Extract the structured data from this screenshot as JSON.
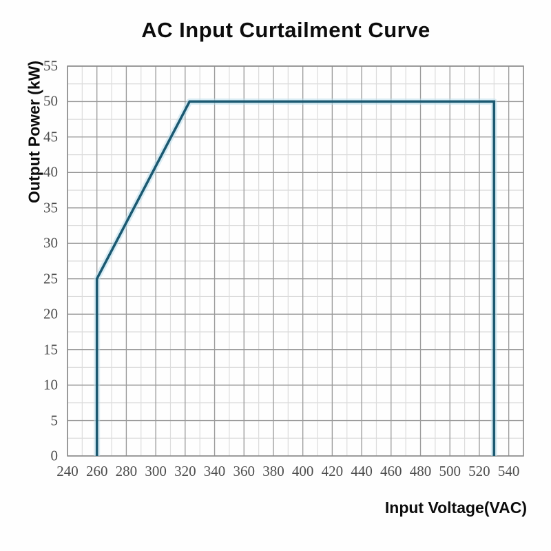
{
  "chart_data": {
    "type": "line",
    "title": "AC Input Curtailment Curve",
    "xlabel": "Input Voltage(VAC)",
    "ylabel": "Output Power (kW)",
    "xlim": [
      240,
      550
    ],
    "ylim": [
      0,
      55
    ],
    "x_tick_labels": [
      240,
      260,
      280,
      300,
      320,
      340,
      360,
      380,
      400,
      420,
      440,
      460,
      480,
      500,
      520,
      540
    ],
    "x_major_step": 20,
    "x_minor_step": 10,
    "y_tick_labels": [
      0,
      5,
      10,
      15,
      20,
      25,
      30,
      35,
      40,
      45,
      50,
      55
    ],
    "y_major_step": 5,
    "y_minor_step": 2.5,
    "grid": "minor and major, full plot area",
    "legend": "none",
    "series": [
      {
        "name": "curtailment_curve",
        "points": [
          [
            260,
            0
          ],
          [
            260,
            25
          ],
          [
            323,
            50
          ],
          [
            530,
            50
          ],
          [
            530,
            0
          ]
        ]
      }
    ],
    "colors": {
      "curve": "#1b5971",
      "curve_halo": "#b9dfec",
      "minor_grid": "#dcdcdc",
      "major_grid": "#9b9b9b",
      "border": "#8a8a8a",
      "tick_text": "#4d4d4d",
      "title_text": "#0c0c0c"
    }
  }
}
